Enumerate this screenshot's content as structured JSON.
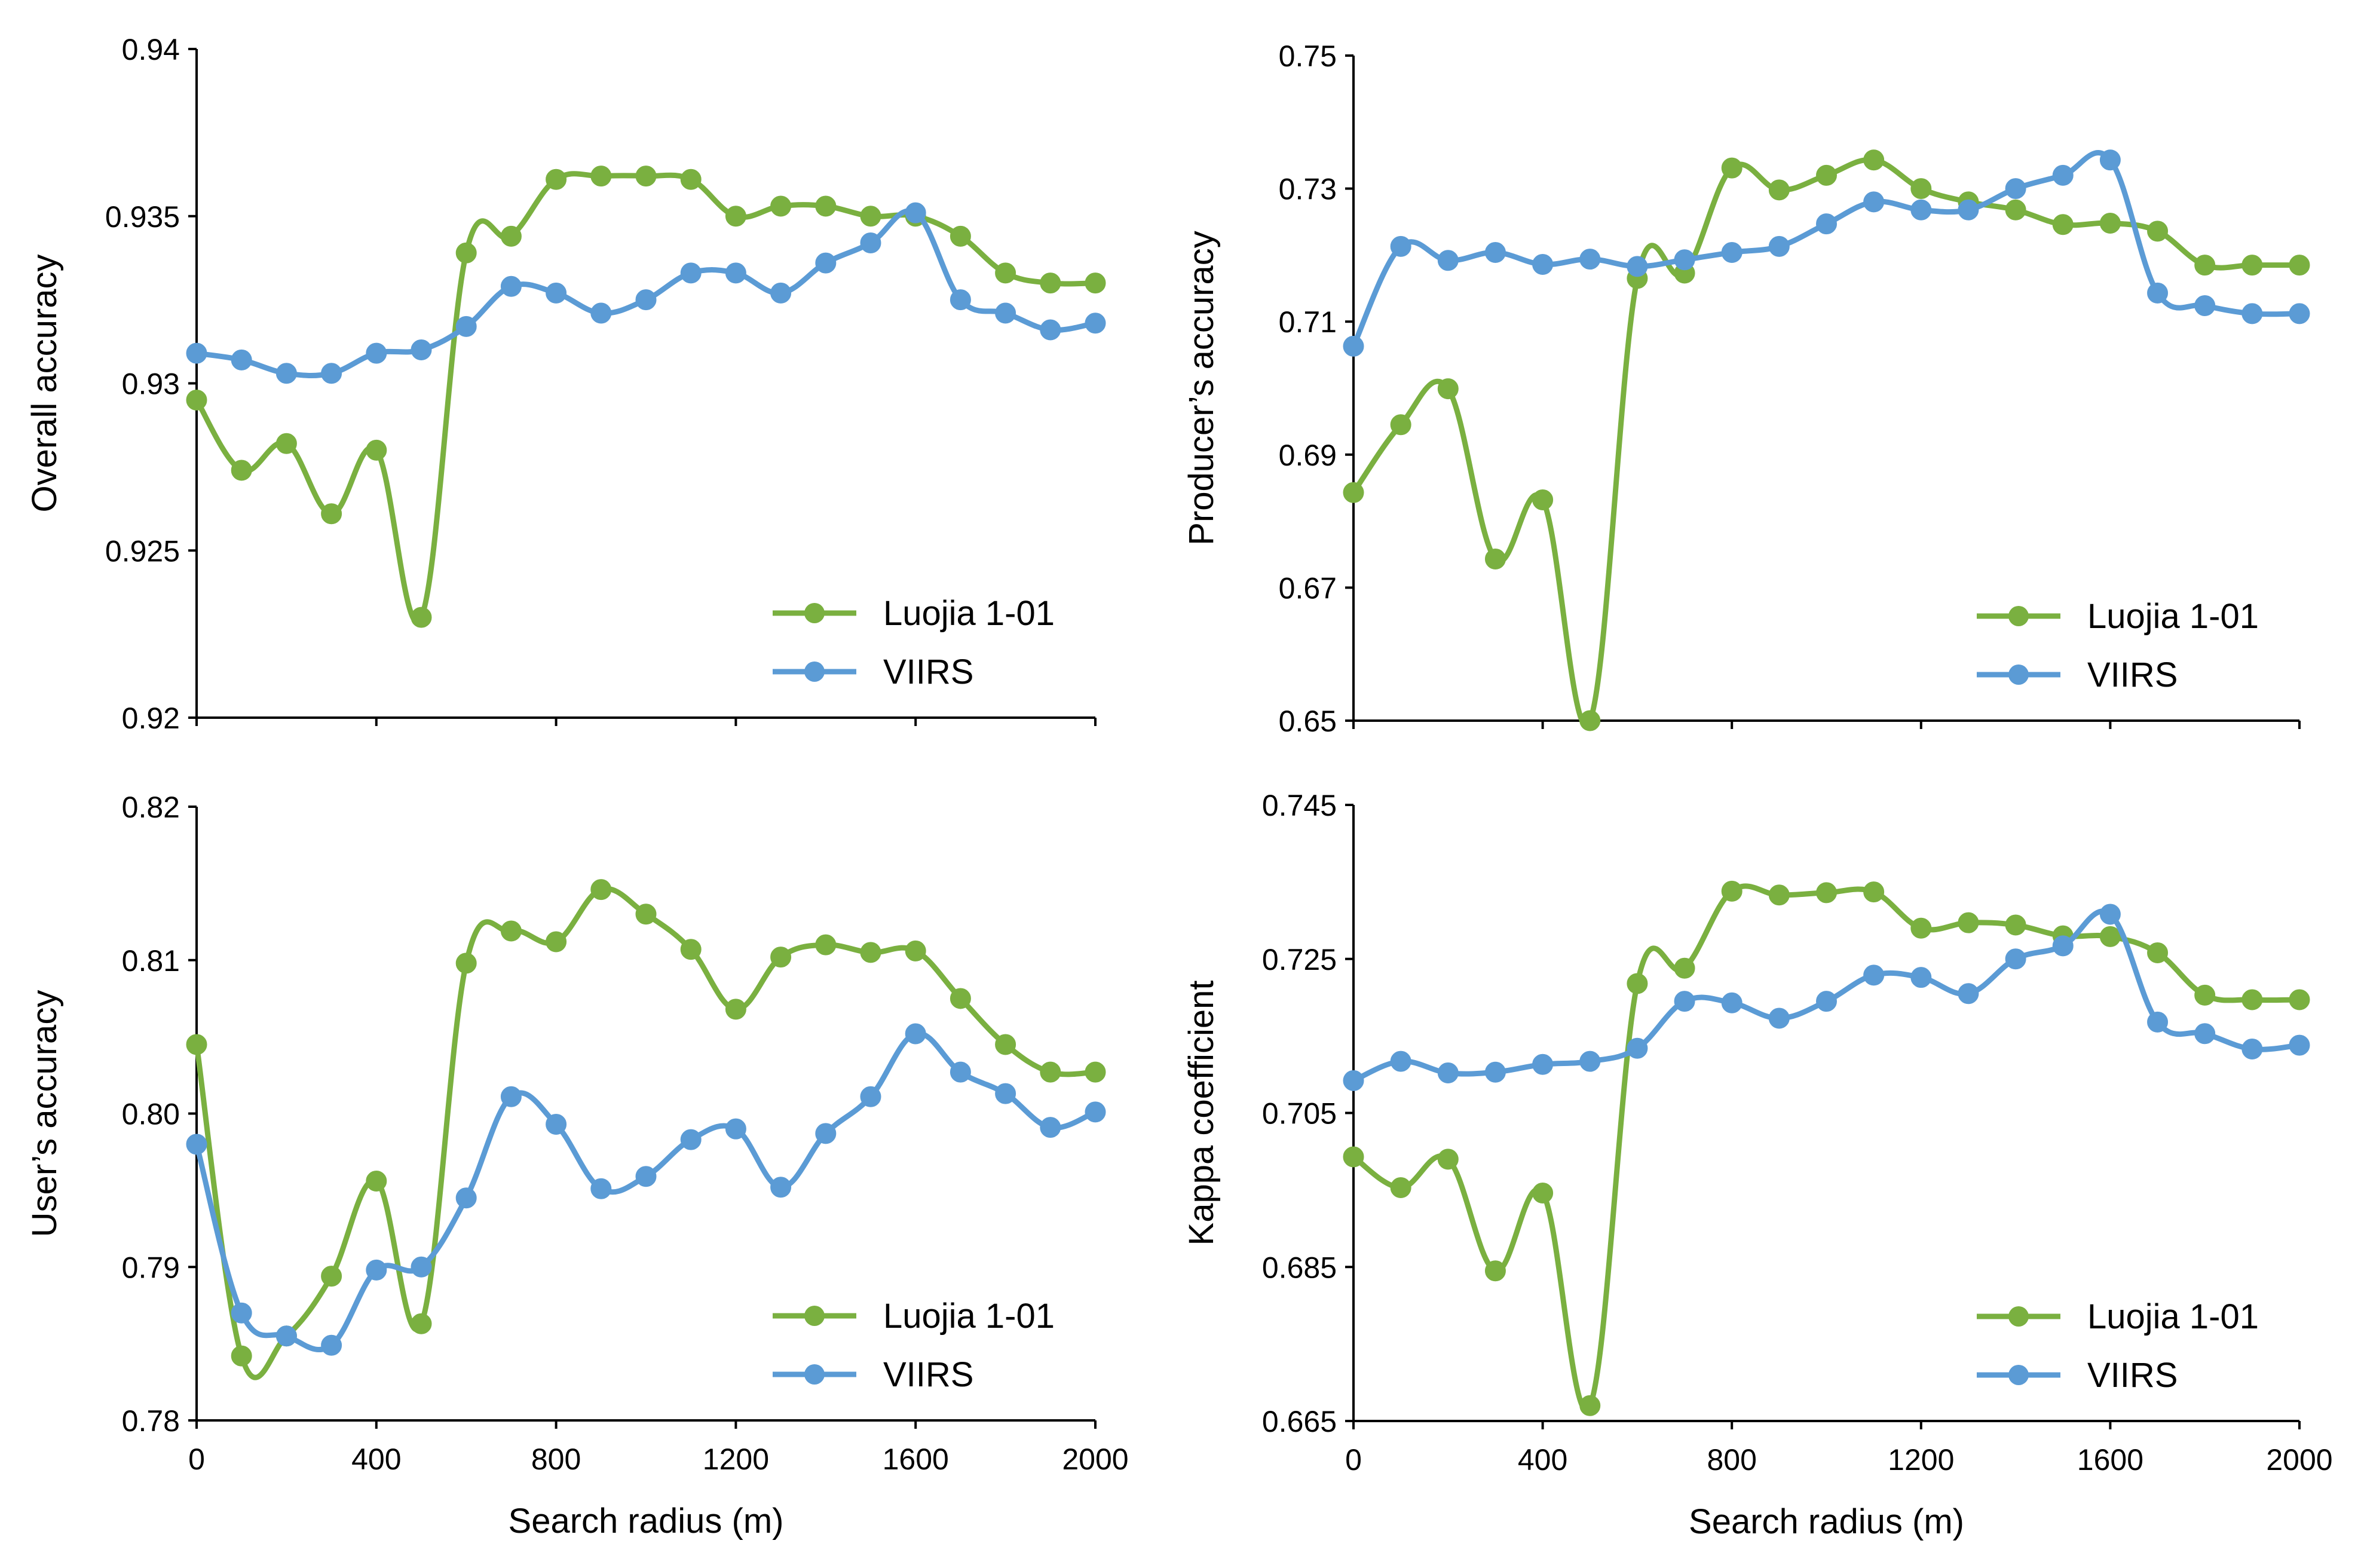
{
  "colors": {
    "luojia": "#7ab040",
    "viirs": "#5b9bd5",
    "axis": "#000000"
  },
  "chart_data": [
    {
      "type": "line",
      "panel": "top-left",
      "title": "",
      "xlabel": "",
      "ylabel": "Overall accuracy",
      "xlim": [
        0,
        2000
      ],
      "ylim": [
        0.92,
        0.94
      ],
      "xticks": [
        0,
        400,
        800,
        1200,
        1600,
        2000
      ],
      "yticks": [
        "0.92",
        "0.925",
        "0.93",
        "0.935",
        "0.94"
      ],
      "x": [
        0,
        100,
        200,
        300,
        400,
        500,
        600,
        700,
        800,
        900,
        1000,
        1100,
        1200,
        1300,
        1400,
        1500,
        1600,
        1700,
        1800,
        1900,
        2000
      ],
      "series": [
        {
          "name": "Luojia 1-01",
          "color_key": "luojia",
          "values": [
            0.9295,
            0.9274,
            0.9282,
            0.9261,
            0.928,
            0.923,
            0.9339,
            0.9344,
            0.9361,
            0.9362,
            0.9362,
            0.9361,
            0.935,
            0.9353,
            0.9353,
            0.935,
            0.935,
            0.9344,
            0.9333,
            0.933,
            0.933
          ]
        },
        {
          "name": "VIIRS",
          "color_key": "viirs",
          "values": [
            0.9309,
            0.9307,
            0.9303,
            0.9303,
            0.9309,
            0.931,
            0.9317,
            0.9329,
            0.9327,
            0.9321,
            0.9325,
            0.9333,
            0.9333,
            0.9327,
            0.9336,
            0.9342,
            0.9351,
            0.9325,
            0.9321,
            0.9316,
            0.9318
          ]
        }
      ],
      "legend": [
        "Luojia 1-01",
        "VIIRS"
      ],
      "legend_position": "bottom-right"
    },
    {
      "type": "line",
      "panel": "top-right",
      "title": "",
      "xlabel": "",
      "ylabel": "Producer’s accuracy",
      "xlim": [
        0,
        2000
      ],
      "ylim": [
        0.65,
        0.75
      ],
      "xticks": [
        0,
        400,
        800,
        1200,
        1600,
        2000
      ],
      "yticks": [
        "0.65",
        "0.67",
        "0.69",
        "0.71",
        "0.73",
        "0.75"
      ],
      "x": [
        0,
        100,
        200,
        300,
        400,
        500,
        600,
        700,
        800,
        900,
        1000,
        1100,
        1200,
        1300,
        1400,
        1500,
        1600,
        1700,
        1800,
        1900,
        2000
      ],
      "series": [
        {
          "name": "Luojia 1-01",
          "color_key": "luojia",
          "values": [
            0.6843,
            0.6945,
            0.6999,
            0.6743,
            0.6832,
            0.65,
            0.7165,
            0.7173,
            0.7331,
            0.7298,
            0.732,
            0.7343,
            0.73,
            0.728,
            0.7268,
            0.7246,
            0.7248,
            0.7236,
            0.7185,
            0.7185,
            0.7185
          ]
        },
        {
          "name": "VIIRS",
          "color_key": "viirs",
          "values": [
            0.7063,
            0.7213,
            0.7192,
            0.7204,
            0.7186,
            0.7194,
            0.7183,
            0.7193,
            0.7204,
            0.7213,
            0.7247,
            0.728,
            0.7268,
            0.7268,
            0.73,
            0.732,
            0.7343,
            0.7143,
            0.7124,
            0.7112,
            0.7112
          ]
        }
      ],
      "legend": [
        "Luojia 1-01",
        "VIIRS"
      ],
      "legend_position": "bottom-right"
    },
    {
      "type": "line",
      "panel": "bottom-left",
      "title": "",
      "xlabel": "Search radius (m)",
      "ylabel": "User’s accuracy",
      "xlim": [
        0,
        2000
      ],
      "ylim": [
        0.78,
        0.82
      ],
      "xticks": [
        0,
        400,
        800,
        1200,
        1600,
        2000
      ],
      "yticks": [
        "0.78",
        "0.79",
        "0.80",
        "0.81",
        "0.82"
      ],
      "x": [
        0,
        100,
        200,
        300,
        400,
        500,
        600,
        700,
        800,
        900,
        1000,
        1100,
        1200,
        1300,
        1400,
        1500,
        1600,
        1700,
        1800,
        1900,
        2000
      ],
      "series": [
        {
          "name": "Luojia 1-01",
          "color_key": "luojia",
          "values": [
            0.8045,
            0.7842,
            0.7855,
            0.7894,
            0.7956,
            0.7863,
            0.8098,
            0.8119,
            0.8112,
            0.8146,
            0.813,
            0.8107,
            0.8068,
            0.8102,
            0.811,
            0.8105,
            0.8106,
            0.8075,
            0.8045,
            0.8027,
            0.8027
          ]
        },
        {
          "name": "VIIRS",
          "color_key": "viirs",
          "values": [
            0.798,
            0.787,
            0.7855,
            0.7849,
            0.7898,
            0.79,
            0.7945,
            0.8011,
            0.7993,
            0.7951,
            0.7959,
            0.7983,
            0.799,
            0.7952,
            0.7987,
            0.8011,
            0.8052,
            0.8027,
            0.8013,
            0.7991,
            0.8001
          ]
        }
      ],
      "legend": [
        "Luojia 1-01",
        "VIIRS"
      ],
      "legend_position": "bottom-right"
    },
    {
      "type": "line",
      "panel": "bottom-right",
      "title": "",
      "xlabel": "Search radius (m)",
      "ylabel": "Kappa coefficient",
      "xlim": [
        0,
        2000
      ],
      "ylim": [
        0.665,
        0.745
      ],
      "xticks": [
        0,
        400,
        800,
        1200,
        1600,
        2000
      ],
      "yticks": [
        "0.665",
        "0.685",
        "0.705",
        "0.725",
        "0.745"
      ],
      "x": [
        0,
        100,
        200,
        300,
        400,
        500,
        600,
        700,
        800,
        900,
        1000,
        1100,
        1200,
        1300,
        1400,
        1500,
        1600,
        1700,
        1800,
        1900,
        2000
      ],
      "series": [
        {
          "name": "Luojia 1-01",
          "color_key": "luojia",
          "values": [
            0.6993,
            0.6953,
            0.699,
            0.6845,
            0.6946,
            0.667,
            0.7218,
            0.7238,
            0.7338,
            0.7333,
            0.7336,
            0.7337,
            0.729,
            0.7297,
            0.7294,
            0.728,
            0.7279,
            0.7258,
            0.7203,
            0.7197,
            0.7197
          ]
        },
        {
          "name": "VIIRS",
          "color_key": "viirs",
          "values": [
            0.7092,
            0.7117,
            0.7102,
            0.7103,
            0.7113,
            0.7117,
            0.7134,
            0.7195,
            0.7193,
            0.7173,
            0.7195,
            0.7229,
            0.7226,
            0.7205,
            0.725,
            0.7267,
            0.7308,
            0.7168,
            0.7153,
            0.7133,
            0.7138
          ]
        }
      ],
      "legend": [
        "Luojia 1-01",
        "VIIRS"
      ],
      "legend_position": "bottom-right"
    }
  ]
}
